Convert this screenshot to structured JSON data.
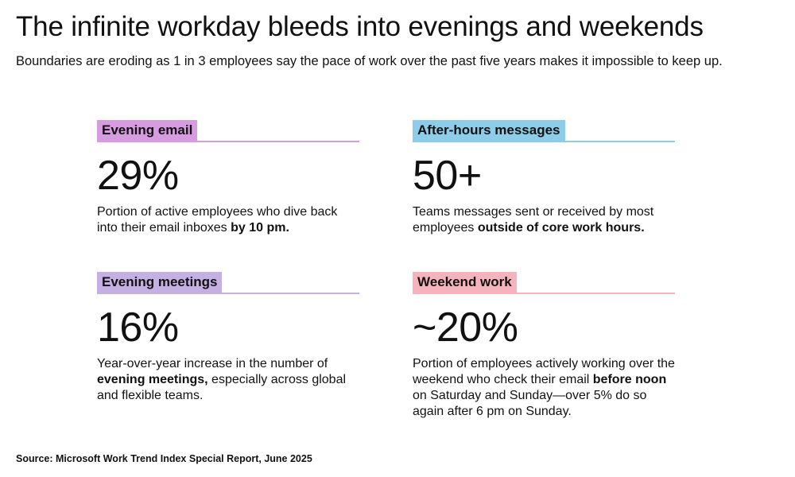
{
  "title": "The infinite workday bleeds into evenings and weekends",
  "subtitle": "Boundaries are eroding as 1 in 3 employees say the pace of work over the past five years makes it impossible to keep up.",
  "cards": [
    {
      "label": "Evening email",
      "color": "#d79be0",
      "stat": "29%",
      "desc": [
        {
          "text": "Portion of active employees who dive back into their email inboxes "
        },
        {
          "text": "by 10 pm.",
          "bold": true
        }
      ]
    },
    {
      "label": "After-hours messages",
      "color": "#8ecdea",
      "stat": "50+",
      "desc": [
        {
          "text": "Teams messages sent or received by most employees "
        },
        {
          "text": "outside of core work hours.",
          "bold": true
        }
      ]
    },
    {
      "label": "Evening meetings",
      "color": "#c5b0e3",
      "stat": "16%",
      "desc": [
        {
          "text": "Year-over-year increase in the number of "
        },
        {
          "text": "evening meetings,",
          "bold": true
        },
        {
          "text": " especially across global and flexible teams."
        }
      ]
    },
    {
      "label": "Weekend work",
      "color": "#f4b3bd",
      "stat": "~20%",
      "desc": [
        {
          "text": "Portion of employees actively working over the weekend who check their email "
        },
        {
          "text": "before noon",
          "bold": true
        },
        {
          "text": " on Saturday and Sunday—over 5% do so again after 6 pm on Sunday."
        }
      ]
    }
  ],
  "source": "Source: Microsoft Work Trend Index Special Report, June 2025"
}
